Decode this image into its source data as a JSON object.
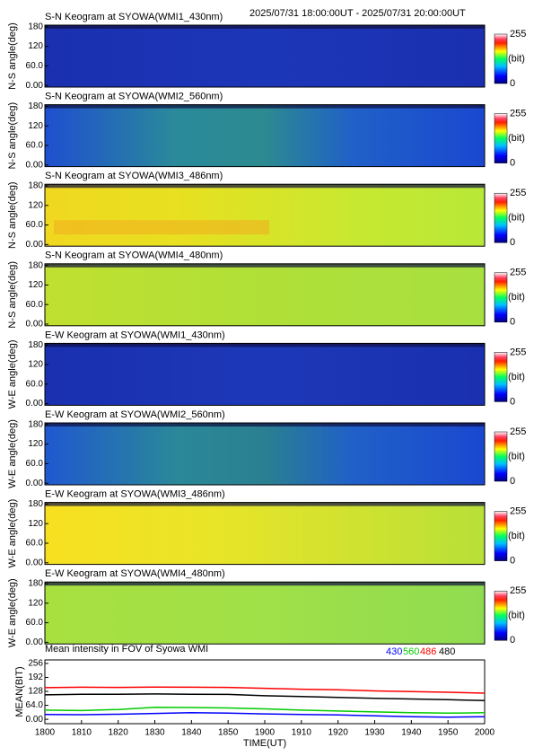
{
  "header": {
    "time_range": "2025/07/31 18:00:00UT - 2025/07/31 20:00:00UT"
  },
  "keograms": [
    {
      "title": "S-N Keogram at SYOWA(WMI1_430nm)",
      "ylabel": "N-S angle(deg)"
    },
    {
      "title": "S-N Keogram at SYOWA(WMI2_560nm)",
      "ylabel": "N-S angle(deg)"
    },
    {
      "title": "S-N Keogram at SYOWA(WMI3_486nm)",
      "ylabel": "N-S angle(deg)"
    },
    {
      "title": "S-N Keogram at SYOWA(WMI4_480nm)",
      "ylabel": "N-S angle(deg)"
    },
    {
      "title": "E-W Keogram at SYOWA(WMI1_430nm)",
      "ylabel": "W-E angle(deg)"
    },
    {
      "title": "E-W Keogram at SYOWA(WMI2_560nm)",
      "ylabel": "W-E angle(deg)"
    },
    {
      "title": "E-W Keogram at SYOWA(WMI3_486nm)",
      "ylabel": "W-E angle(deg)"
    },
    {
      "title": "E-W Keogram at SYOWA(WMI4_480nm)",
      "ylabel": "W-E angle(deg)"
    }
  ],
  "keogram_axis": {
    "ylim": [
      -5,
      185
    ],
    "yticks": [
      {
        "value": 0,
        "label": "0.00"
      },
      {
        "value": 60,
        "label": "60.0"
      },
      120,
      180
    ]
  },
  "colorbar": {
    "ticks": [
      0,
      255
    ],
    "unit": "(bit)",
    "lim": [
      0,
      255
    ]
  },
  "chart_data": {
    "type": "line",
    "title": "Mean intensity in FOV of Syowa WMI",
    "x_label": "TIME(UT)",
    "y_label": "MEAN(BIT)",
    "x": [
      "1800",
      "1810",
      "1820",
      "1830",
      "1840",
      "1850",
      "1900",
      "1910",
      "1920",
      "1930",
      "1940",
      "1950",
      "2000"
    ],
    "series": [
      {
        "name": "430",
        "color": "#0000ff",
        "values": [
          22,
          21,
          23,
          27,
          30,
          28,
          25,
          22,
          20,
          16,
          12,
          10,
          12
        ]
      },
      {
        "name": "560",
        "color": "#00cc00",
        "values": [
          42,
          40,
          45,
          55,
          54,
          52,
          48,
          42,
          38,
          34,
          30,
          28,
          30
        ]
      },
      {
        "name": "486",
        "color": "#ff0000",
        "values": [
          145,
          147,
          146,
          148,
          147,
          146,
          142,
          138,
          135,
          130,
          127,
          124,
          120
        ]
      },
      {
        "name": "480",
        "color": "#000000",
        "values": [
          112,
          115,
          115,
          116,
          115,
          114,
          108,
          104,
          100,
          96,
          93,
          90,
          86
        ]
      }
    ],
    "ylim": [
      -20,
      272
    ],
    "yticks": [
      {
        "value": 0,
        "label": "0.00"
      },
      {
        "value": 64,
        "label": "64.0"
      },
      128,
      192,
      256
    ]
  }
}
